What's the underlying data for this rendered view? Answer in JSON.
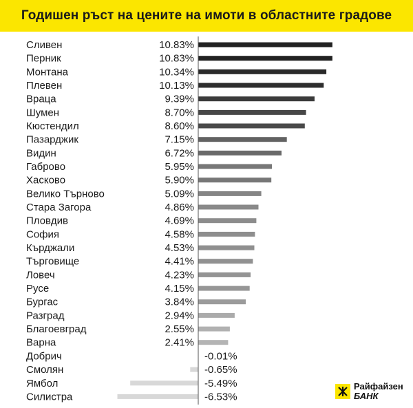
{
  "header": {
    "title": "Годишен ръст на цените на имоти в областните градове"
  },
  "logo": {
    "name": "Райфайзен",
    "sub": "БАНК",
    "icon": "raiffeisen-cross-icon",
    "color": "#fbe600"
  },
  "chart_data": {
    "type": "bar",
    "orientation": "horizontal",
    "title": "Годишен ръст на цените на имоти в областните градове",
    "xlabel": "",
    "ylabel": "",
    "unit": "%",
    "categories": [
      "Сливен",
      "Перник",
      "Монтана",
      "Плевен",
      "Враца",
      "Шумен",
      "Кюстендил",
      "Пазарджик",
      "Видин",
      "Габрово",
      "Хасково",
      "Велико Търново",
      "Стара Загора",
      "Пловдив",
      "София",
      "Кърджали",
      "Търговище",
      "Ловеч",
      "Русе",
      "Бургас",
      "Разград",
      "Благоевград",
      "Варна",
      "Добрич",
      "Смолян",
      "Ямбол",
      "Силистра"
    ],
    "values": [
      10.83,
      10.83,
      10.34,
      10.13,
      9.39,
      8.7,
      8.6,
      7.15,
      6.72,
      5.95,
      5.9,
      5.09,
      4.86,
      4.69,
      4.58,
      4.53,
      4.41,
      4.23,
      4.15,
      3.84,
      2.94,
      2.55,
      2.41,
      -0.01,
      -0.65,
      -5.49,
      -6.53
    ],
    "value_labels": [
      "10.83%",
      "10.83%",
      "10.34%",
      "10.13%",
      "9.39%",
      "8.70%",
      "8.60%",
      "7.15%",
      "6.72%",
      "5.95%",
      "5.90%",
      "5.09%",
      "4.86%",
      "4.69%",
      "4.58%",
      "4.53%",
      "4.41%",
      "4.23%",
      "4.15%",
      "3.84%",
      "2.94%",
      "2.55%",
      "2.41%",
      "-0.01%",
      "-0.65%",
      "-5.49%",
      "-6.53%"
    ],
    "grid": false,
    "legend": "none",
    "colors": {
      "high": "#222222",
      "low": "#b4b4b4",
      "negative": "#d8d8d8",
      "zero_line": "#555555"
    }
  }
}
